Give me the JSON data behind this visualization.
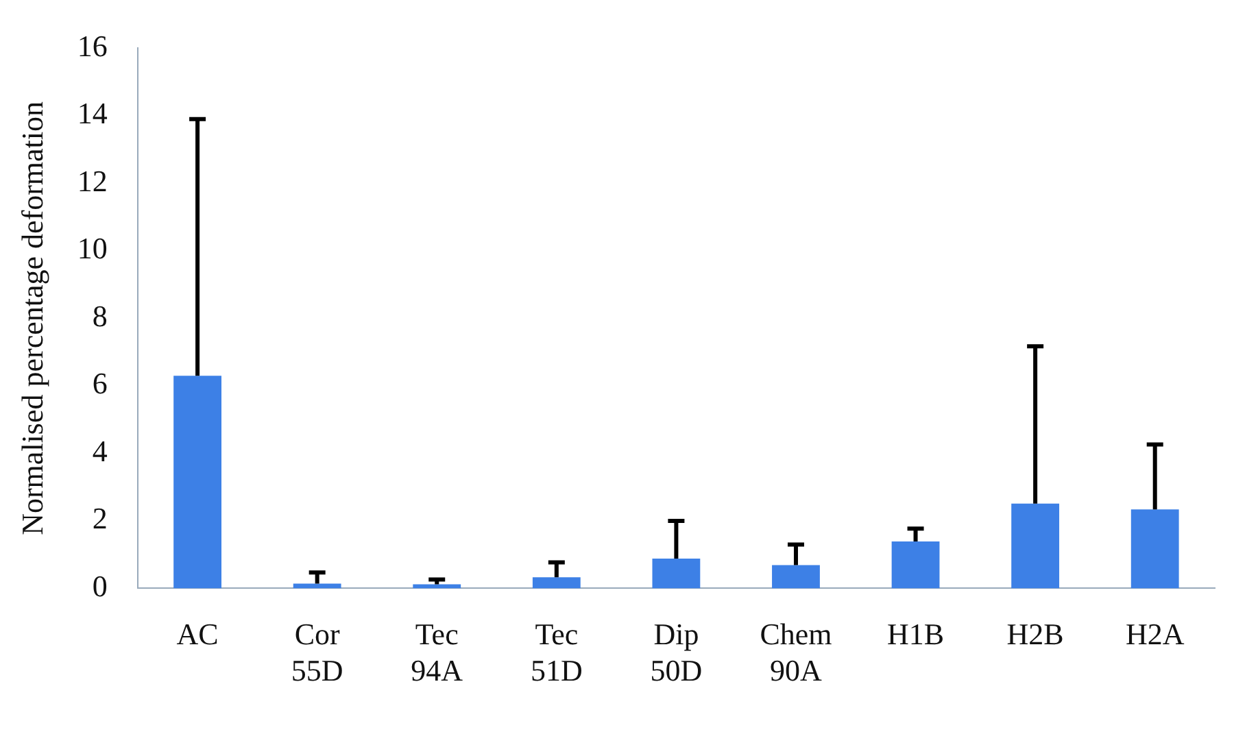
{
  "chart_data": {
    "type": "bar",
    "ylabel": "Normalised percentage deformation",
    "categories": [
      "AC",
      "Cor 55D",
      "Tec 94A",
      "Tec 51D",
      "Dip 50D",
      "Chem 90A",
      "H1B",
      "H2B",
      "H2A"
    ],
    "values": [
      6.3,
      0.14,
      0.12,
      0.33,
      0.88,
      0.69,
      1.39,
      2.51,
      2.34
    ],
    "errors": [
      [
        6.3,
        13.9
      ],
      [
        0.14,
        0.47
      ],
      [
        0.12,
        0.26
      ],
      [
        0.33,
        0.77
      ],
      [
        0.88,
        2.0
      ],
      [
        0.69,
        1.3
      ],
      [
        1.39,
        1.77
      ],
      [
        2.51,
        7.17
      ],
      [
        2.34,
        4.26
      ]
    ],
    "color": "#3d80e6",
    "ylim": [
      0,
      16
    ],
    "yticks": [
      0,
      2,
      4,
      6,
      8,
      10,
      12,
      14,
      16
    ],
    "grid": false,
    "legend": false
  }
}
